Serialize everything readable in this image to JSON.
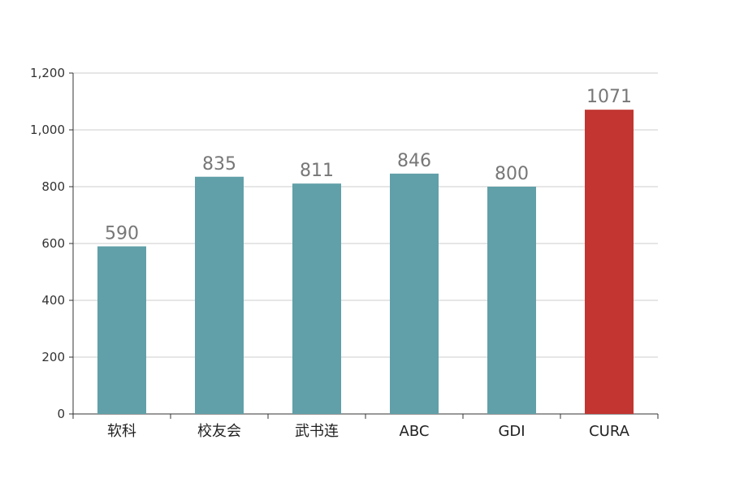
{
  "chart_data": {
    "type": "bar",
    "title": "",
    "xlabel": "",
    "ylabel": "",
    "categories": [
      "软科",
      "校友会",
      "武书连",
      "ABC",
      "GDI",
      "CURA"
    ],
    "values": [
      590,
      835,
      811,
      846,
      800,
      1071
    ],
    "data_labels": [
      "590",
      "835",
      "811",
      "846",
      "800",
      "1071"
    ],
    "ylim": [
      0,
      1200
    ],
    "yticks": [
      0,
      200,
      400,
      600,
      800,
      1000,
      1200
    ],
    "ytick_labels": [
      "0",
      "200",
      "400",
      "600",
      "800",
      "1,000",
      "1,200"
    ],
    "grid": true,
    "colors": {
      "default": "#61a0a8",
      "highlight": "#c23531"
    },
    "highlight_index": 5
  }
}
